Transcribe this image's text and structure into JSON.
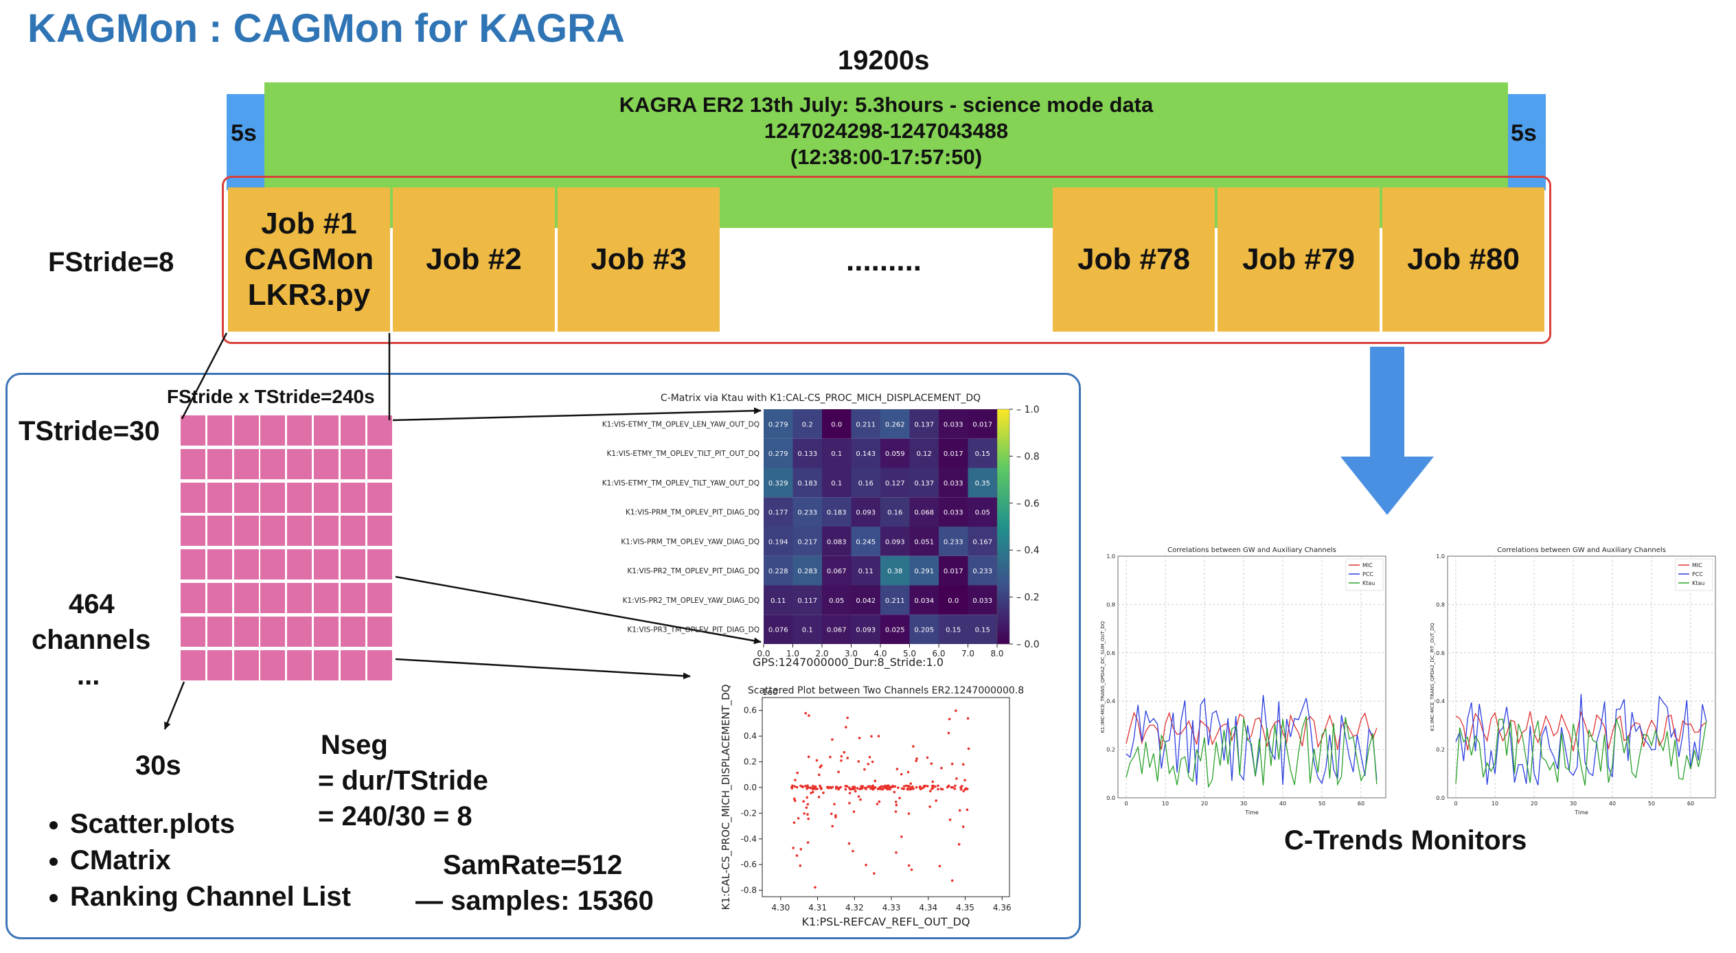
{
  "title": "KAGMon : CAGMon for KAGRA",
  "duration": "19200s",
  "pad_label": "5s",
  "data_segment": {
    "line1": "KAGRA ER2 13th July: 5.3hours - science mode data",
    "line2": "1247024298-1247043488",
    "line3": "(12:38:00-17:57:50)"
  },
  "fstride_label": "FStride=8",
  "jobs": [
    {
      "line1": "Job #1",
      "line2": "CAGMon",
      "line3": "LKR3.py"
    },
    {
      "label": "Job #2"
    },
    {
      "label": "Job #3"
    },
    {
      "label": "Job #78"
    },
    {
      "label": "Job #79"
    },
    {
      "label": "Job #80"
    }
  ],
  "jobs_ellipsis": ".........",
  "panel": {
    "grid_title": "FStride x TStride=240s",
    "tstride_label": "TStride=30",
    "channels_line1": "464",
    "channels_line2": "channels",
    "channels_line3": "...",
    "segment_label": "30s",
    "nseg_line1": "Nseg",
    "nseg_line2": "= dur/TStride",
    "nseg_line3": "= 240/30 = 8",
    "samrate_line1": "SamRate=512",
    "samrate_line2": "— samples: 15360",
    "outputs": [
      "Scatter.plots",
      "CMatrix",
      "Ranking Channel List"
    ]
  },
  "cmatrix": {
    "title": "C-Matrix via Ktau with K1:CAL-CS_PROC_MICH_DISPLACEMENT_DQ",
    "xlabel": "GPS:1247000000_Dur:8_Stride:1.0",
    "row_labels": [
      "K1:VIS-ETMY_TM_OPLEV_LEN_YAW_OUT_DQ",
      "K1:VIS-ETMY_TM_OPLEV_TILT_PIT_OUT_DQ",
      "K1:VIS-ETMY_TM_OPLEV_TILT_YAW_OUT_DQ",
      "K1:VIS-PRM_TM_OPLEV_PIT_DIAG_DQ",
      "K1:VIS-PRM_TM_OPLEV_YAW_DIAG_DQ",
      "K1:VIS-PR2_TM_OPLEV_PIT_DIAG_DQ",
      "K1:VIS-PR2_TM_OPLEV_YAW_DIAG_DQ",
      "K1:VIS-PR3_TM_OPLEV_PIT_DIAG_DQ"
    ],
    "values": [
      [
        "0.279",
        "0.2",
        "0.0",
        "0.211",
        "0.262",
        "0.137",
        "0.033",
        "0.017"
      ],
      [
        "0.279",
        "0.133",
        "0.1",
        "0.143",
        "0.059",
        "0.12",
        "0.017",
        "0.15"
      ],
      [
        "0.329",
        "0.183",
        "0.1",
        "0.16",
        "0.127",
        "0.137",
        "0.033",
        "0.35"
      ],
      [
        "0.177",
        "0.233",
        "0.183",
        "0.093",
        "0.16",
        "0.068",
        "0.033",
        "0.05"
      ],
      [
        "0.194",
        "0.217",
        "0.083",
        "0.245",
        "0.093",
        "0.051",
        "0.233",
        "0.167"
      ],
      [
        "0.228",
        "0.283",
        "0.067",
        "0.11",
        "0.38",
        "0.291",
        "0.017",
        "0.233"
      ],
      [
        "0.11",
        "0.117",
        "0.05",
        "0.042",
        "0.211",
        "0.034",
        "0.0",
        "0.033"
      ],
      [
        "0.076",
        "0.1",
        "0.067",
        "0.093",
        "0.025",
        "0.205",
        "0.15",
        "0.15"
      ]
    ],
    "x_ticks": [
      "0.0",
      "1.0",
      "2.0",
      "3.0",
      "4.0",
      "5.0",
      "6.0",
      "7.0",
      "8.0"
    ],
    "cbar_ticks": [
      "1.0",
      "0.8",
      "0.6",
      "0.4",
      "0.2",
      "0.0"
    ]
  },
  "scatter": {
    "title": "Scattered Plot between Two Channels ER2.1247000000.8",
    "xlabel": "K1:PSL-REFCAV_REFL_OUT_DQ",
    "ylabel": "K1:CAL-CS_PROC_MICH_DISPLACEMENT_DQ",
    "offset_text": "1e0",
    "x_ticks": [
      "4.30",
      "4.31",
      "4.32",
      "4.33",
      "4.34",
      "4.35",
      "4.36"
    ],
    "y_ticks": [
      "0.6",
      "0.4",
      "0.2",
      "0.0",
      "-0.2",
      "-0.4",
      "-0.6",
      "-0.8"
    ],
    "point_color": "#e8302a"
  },
  "trends": {
    "label": "C-Trends Monitors",
    "panels": [
      {
        "title": "Correlations between GW and Auxiliary Channels",
        "ylabel": "K1:IMC-MCE_TRANS_QPDA2_DC_SUM_OUT_DQ",
        "xlabel": "Time"
      },
      {
        "title": "Correlations between GW and Auxiliary Channels",
        "ylabel": "K1:IMC-MCE_TRANS_QPDA2_DC_PIT_OUT_DQ",
        "xlabel": "Time"
      }
    ],
    "legend": [
      "MIC",
      "PCC",
      "Ktau"
    ],
    "colors": [
      "#e03030",
      "#2a3ee0",
      "#2aa02a"
    ],
    "y_ticks": [
      "1.0",
      "0.8",
      "0.6",
      "0.4",
      "0.2",
      "0.0"
    ],
    "x_ticks": [
      "0",
      "10",
      "20",
      "30",
      "40",
      "50",
      "60"
    ]
  },
  "colors": {
    "title": "#2f74b5",
    "green": "#84d354",
    "blue": "#4fa0ef",
    "job": "#efba44",
    "red_frame": "#d9403a",
    "pink": "#df6fa7",
    "panel_frame": "#3d75b6"
  }
}
